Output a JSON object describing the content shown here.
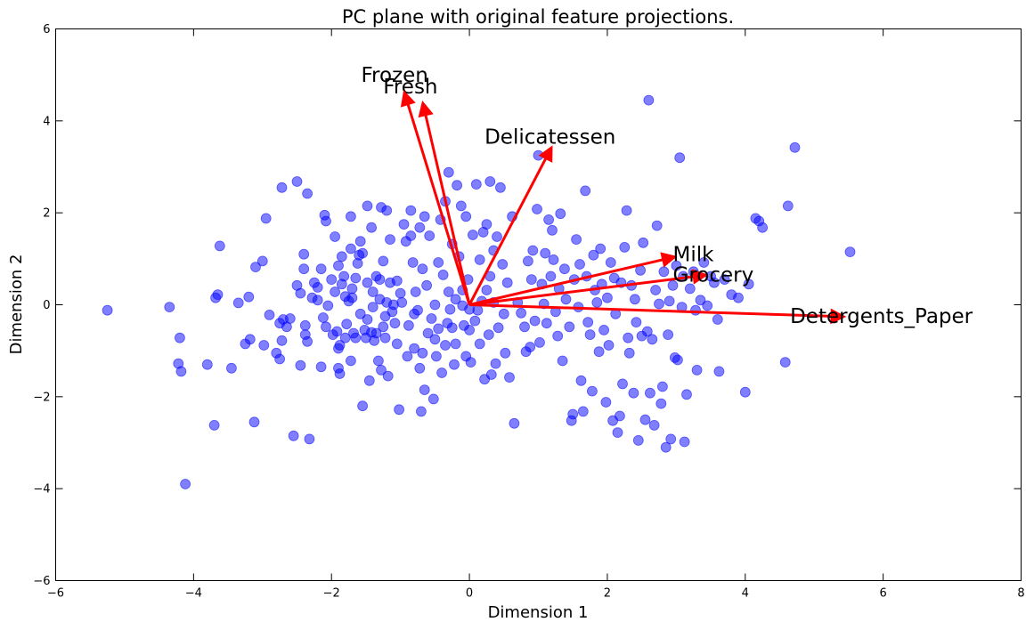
{
  "chart_data": {
    "type": "scatter",
    "title": "PC plane with original feature projections.",
    "xlabel": "Dimension 1",
    "ylabel": "Dimension 2",
    "xlim": [
      -6,
      8
    ],
    "ylim": [
      -6,
      6
    ],
    "xticks": [
      -6,
      -4,
      -2,
      0,
      2,
      4,
      6,
      8
    ],
    "yticks": [
      -6,
      -4,
      -2,
      0,
      2,
      4,
      6
    ],
    "xtick_labels": [
      "−6",
      "−4",
      "−2",
      "0",
      "2",
      "4",
      "6",
      "8"
    ],
    "ytick_labels": [
      "−6",
      "−4",
      "−2",
      "0",
      "2",
      "4",
      "6"
    ],
    "grid": false,
    "point_color": "#0000ff",
    "vector_color": "#ff0000",
    "vectors": [
      {
        "name": "Fresh",
        "x": -0.68,
        "y": 4.42,
        "label": "Fresh",
        "label_x": -1.25,
        "label_y": 4.6
      },
      {
        "name": "Milk",
        "x": 3.0,
        "y": 1.05,
        "label": "Milk",
        "label_x": 2.95,
        "label_y": 0.95
      },
      {
        "name": "Grocery",
        "x": 3.45,
        "y": 0.65,
        "label": "Grocery",
        "label_x": 2.95,
        "label_y": 0.5
      },
      {
        "name": "Frozen",
        "x": -0.95,
        "y": 4.65,
        "label": "Frozen",
        "label_x": -1.57,
        "label_y": 4.85
      },
      {
        "name": "Detergents_Paper",
        "x": 5.45,
        "y": -0.26,
        "label": "Detergents_Paper",
        "label_x": 4.65,
        "label_y": -0.4
      },
      {
        "name": "Delicatessen",
        "x": 1.2,
        "y": 3.45,
        "label": "Delicatessen",
        "label_x": 0.22,
        "label_y": 3.5
      }
    ],
    "points": [
      [
        -5.25,
        -0.12
      ],
      [
        -4.35,
        -0.05
      ],
      [
        -4.2,
        -0.72
      ],
      [
        -4.22,
        -1.28
      ],
      [
        -4.18,
        -1.45
      ],
      [
        -4.12,
        -3.9
      ],
      [
        -3.8,
        -1.3
      ],
      [
        -3.7,
        -2.62
      ],
      [
        -3.68,
        0.15
      ],
      [
        -3.65,
        0.22
      ],
      [
        -3.62,
        1.28
      ],
      [
        -3.45,
        -1.38
      ],
      [
        -3.35,
        0.04
      ],
      [
        -3.25,
        -0.85
      ],
      [
        -3.2,
        0.17
      ],
      [
        -3.18,
        -0.75
      ],
      [
        -3.12,
        -2.55
      ],
      [
        -3.1,
        0.82
      ],
      [
        -3.0,
        0.95
      ],
      [
        -2.98,
        -0.88
      ],
      [
        -2.95,
        1.88
      ],
      [
        -2.9,
        -0.22
      ],
      [
        -2.8,
        -1.05
      ],
      [
        -2.75,
        -1.18
      ],
      [
        -2.75,
        -0.4
      ],
      [
        -2.72,
        -0.78
      ],
      [
        -2.72,
        2.55
      ],
      [
        -2.7,
        -0.32
      ],
      [
        -2.65,
        -0.48
      ],
      [
        -2.6,
        -0.3
      ],
      [
        -2.55,
        -2.85
      ],
      [
        -2.5,
        0.42
      ],
      [
        -2.5,
        2.68
      ],
      [
        -2.45,
        0.25
      ],
      [
        -2.45,
        -1.32
      ],
      [
        -2.4,
        1.1
      ],
      [
        -2.4,
        0.78
      ],
      [
        -2.38,
        -0.65
      ],
      [
        -2.38,
        -0.45
      ],
      [
        -2.35,
        -0.8
      ],
      [
        -2.35,
        2.42
      ],
      [
        -2.32,
        -2.92
      ],
      [
        -2.28,
        0.15
      ],
      [
        -2.25,
        0.48
      ],
      [
        -2.2,
        0.1
      ],
      [
        -2.2,
        0.38
      ],
      [
        -2.15,
        0.78
      ],
      [
        -2.15,
        -1.35
      ],
      [
        -2.12,
        -0.28
      ],
      [
        -2.1,
        1.95
      ],
      [
        -2.08,
        1.82
      ],
      [
        -2.08,
        -0.48
      ],
      [
        -2.05,
        -0.02
      ],
      [
        -2.0,
        0.55
      ],
      [
        -1.98,
        -0.65
      ],
      [
        -1.95,
        1.48
      ],
      [
        -1.95,
        0.28
      ],
      [
        -1.92,
        -0.58
      ],
      [
        -1.9,
        -0.95
      ],
      [
        -1.9,
        0.85
      ],
      [
        -1.9,
        -1.38
      ],
      [
        -1.88,
        -1.5
      ],
      [
        -1.88,
        -0.88
      ],
      [
        -1.85,
        1.05
      ],
      [
        -1.85,
        0.45
      ],
      [
        -1.82,
        0.62
      ],
      [
        -1.8,
        0.18
      ],
      [
        -1.8,
        -0.72
      ],
      [
        -1.78,
        -0.42
      ],
      [
        -1.75,
        0.08
      ],
      [
        -1.72,
        1.22
      ],
      [
        -1.72,
        1.92
      ],
      [
        -1.72,
        -1.22
      ],
      [
        -1.7,
        0.35
      ],
      [
        -1.7,
        0.15
      ],
      [
        -1.68,
        -0.62
      ],
      [
        -1.65,
        0.58
      ],
      [
        -1.65,
        -0.72
      ],
      [
        -1.62,
        0.9
      ],
      [
        -1.6,
        1.08
      ],
      [
        -1.58,
        1.38
      ],
      [
        -1.58,
        -0.2
      ],
      [
        -1.55,
        -2.2
      ],
      [
        -1.55,
        1.12
      ],
      [
        -1.52,
        -0.55
      ],
      [
        -1.5,
        -0.72
      ],
      [
        -1.48,
        2.15
      ],
      [
        -1.48,
        0.48
      ],
      [
        -1.48,
        -0.32
      ],
      [
        -1.45,
        -1.65
      ],
      [
        -1.42,
        -0.6
      ],
      [
        -1.42,
        1.68
      ],
      [
        -1.4,
        0.28
      ],
      [
        -1.4,
        -0.05
      ],
      [
        -1.38,
        -0.78
      ],
      [
        -1.35,
        0.62
      ],
      [
        -1.35,
        -0.62
      ],
      [
        -1.32,
        -1.22
      ],
      [
        -1.3,
        0.12
      ],
      [
        -1.3,
        0.55
      ],
      [
        -1.28,
        2.12
      ],
      [
        -1.28,
        -1.42
      ],
      [
        -1.25,
        -0.48
      ],
      [
        -1.25,
        0.95
      ],
      [
        -1.22,
        -0.72
      ],
      [
        -1.22,
        -0.25
      ],
      [
        -1.2,
        2.05
      ],
      [
        -1.2,
        0.05
      ],
      [
        -1.18,
        -1.55
      ],
      [
        -1.15,
        1.42
      ],
      [
        -1.15,
        0.48
      ],
      [
        -1.12,
        -0.15
      ],
      [
        -1.1,
        0.0
      ],
      [
        -1.08,
        -0.4
      ],
      [
        -1.05,
        0.52
      ],
      [
        -1.05,
        -0.85
      ],
      [
        -1.02,
        -2.28
      ],
      [
        -1.0,
        0.25
      ],
      [
        -0.98,
        0.05
      ],
      [
        -0.95,
        1.75
      ],
      [
        -0.92,
        1.38
      ],
      [
        -0.9,
        -1.12
      ],
      [
        -0.88,
        -0.45
      ],
      [
        -0.85,
        1.5
      ],
      [
        -0.85,
        2.05
      ],
      [
        -0.82,
        0.92
      ],
      [
        -0.8,
        -0.2
      ],
      [
        -0.8,
        -0.95
      ],
      [
        -0.78,
        0.28
      ],
      [
        -0.75,
        -0.12
      ],
      [
        -0.72,
        1.68
      ],
      [
        -0.72,
        -1.38
      ],
      [
        -0.7,
        -2.32
      ],
      [
        -0.68,
        0.78
      ],
      [
        -0.68,
        -1.05
      ],
      [
        -0.65,
        1.92
      ],
      [
        -0.65,
        -1.85
      ],
      [
        -0.62,
        0.42
      ],
      [
        -0.6,
        -0.62
      ],
      [
        -0.58,
        1.5
      ],
      [
        -0.55,
        -0.3
      ],
      [
        -0.52,
        -2.05
      ],
      [
        -0.5,
        0.0
      ],
      [
        -0.5,
        -0.75
      ],
      [
        -0.48,
        -1.12
      ],
      [
        -0.45,
        0.92
      ],
      [
        -0.45,
        -0.52
      ],
      [
        -0.42,
        1.85
      ],
      [
        -0.4,
        -1.48
      ],
      [
        -0.38,
        0.65
      ],
      [
        -0.35,
        -0.88
      ],
      [
        -0.35,
        2.25
      ],
      [
        -0.32,
        -0.4
      ],
      [
        -0.3,
        2.88
      ],
      [
        -0.3,
        0.28
      ],
      [
        -0.28,
        -0.1
      ],
      [
        -0.25,
        -0.5
      ],
      [
        -0.25,
        1.32
      ],
      [
        -0.22,
        -1.3
      ],
      [
        -0.2,
        0.12
      ],
      [
        -0.2,
        -0.85
      ],
      [
        -0.18,
        2.6
      ],
      [
        -0.15,
        1.05
      ],
      [
        -0.12,
        2.15
      ],
      [
        -0.1,
        -0.02
      ],
      [
        -0.1,
        0.32
      ],
      [
        -0.08,
        -0.45
      ],
      [
        -0.05,
        -1.12
      ],
      [
        -0.05,
        1.92
      ],
      [
        -0.02,
        0.55
      ],
      [
        0.0,
        -0.1
      ],
      [
        0.0,
        -0.55
      ],
      [
        0.02,
        -1.25
      ],
      [
        0.05,
        1.52
      ],
      [
        0.08,
        -0.35
      ],
      [
        0.1,
        2.62
      ],
      [
        0.12,
        -0.12
      ],
      [
        0.15,
        0.98
      ],
      [
        0.15,
        -0.85
      ],
      [
        0.18,
        0.08
      ],
      [
        0.2,
        1.58
      ],
      [
        0.22,
        -1.62
      ],
      [
        0.25,
        1.75
      ],
      [
        0.25,
        0.32
      ],
      [
        0.28,
        -0.65
      ],
      [
        0.3,
        2.68
      ],
      [
        0.3,
        0.62
      ],
      [
        0.32,
        -1.52
      ],
      [
        0.35,
        1.18
      ],
      [
        0.35,
        0.05
      ],
      [
        0.38,
        -1.28
      ],
      [
        0.4,
        1.48
      ],
      [
        0.42,
        -0.5
      ],
      [
        0.45,
        2.55
      ],
      [
        0.48,
        0.88
      ],
      [
        0.5,
        -0.2
      ],
      [
        0.52,
        -1.05
      ],
      [
        0.55,
        0.48
      ],
      [
        0.58,
        -1.58
      ],
      [
        0.62,
        1.92
      ],
      [
        0.65,
        -2.58
      ],
      [
        0.7,
        0.05
      ],
      [
        0.75,
        -0.18
      ],
      [
        0.8,
        -0.48
      ],
      [
        0.82,
        -1.02
      ],
      [
        0.85,
        0.95
      ],
      [
        0.88,
        -0.92
      ],
      [
        0.9,
        0.55
      ],
      [
        0.92,
        1.18
      ],
      [
        0.95,
        -0.35
      ],
      [
        0.98,
        2.08
      ],
      [
        1.0,
        3.25
      ],
      [
        1.02,
        -0.82
      ],
      [
        1.05,
        0.45
      ],
      [
        1.08,
        0.02
      ],
      [
        1.1,
        1.12
      ],
      [
        1.12,
        -0.4
      ],
      [
        1.15,
        1.85
      ],
      [
        1.18,
        0.62
      ],
      [
        1.2,
        1.62
      ],
      [
        1.22,
        0.98
      ],
      [
        1.25,
        -0.15
      ],
      [
        1.28,
        -0.68
      ],
      [
        1.3,
        0.35
      ],
      [
        1.32,
        1.98
      ],
      [
        1.35,
        -1.22
      ],
      [
        1.38,
        0.78
      ],
      [
        1.4,
        0.12
      ],
      [
        1.45,
        -0.48
      ],
      [
        1.48,
        -2.52
      ],
      [
        1.5,
        -2.38
      ],
      [
        1.52,
        0.55
      ],
      [
        1.55,
        1.42
      ],
      [
        1.58,
        -0.05
      ],
      [
        1.6,
        0.88
      ],
      [
        1.62,
        -1.65
      ],
      [
        1.65,
        -2.32
      ],
      [
        1.68,
        2.48
      ],
      [
        1.7,
        0.62
      ],
      [
        1.72,
        -0.38
      ],
      [
        1.75,
        -0.65
      ],
      [
        1.78,
        -1.88
      ],
      [
        1.8,
        1.08
      ],
      [
        1.82,
        0.32
      ],
      [
        1.85,
        0.05
      ],
      [
        1.88,
        -1.02
      ],
      [
        1.9,
        1.22
      ],
      [
        1.92,
        0.45
      ],
      [
        1.95,
        -0.55
      ],
      [
        1.98,
        -2.12
      ],
      [
        2.0,
        0.15
      ],
      [
        2.02,
        -0.88
      ],
      [
        2.05,
        0.92
      ],
      [
        2.08,
        -2.52
      ],
      [
        2.1,
        0.58
      ],
      [
        2.12,
        -0.2
      ],
      [
        2.15,
        -2.78
      ],
      [
        2.18,
        -2.42
      ],
      [
        2.2,
        0.48
      ],
      [
        2.22,
        -1.72
      ],
      [
        2.25,
        1.25
      ],
      [
        2.28,
        2.05
      ],
      [
        2.3,
        -0.72
      ],
      [
        2.32,
        -1.05
      ],
      [
        2.35,
        0.42
      ],
      [
        2.38,
        -1.92
      ],
      [
        2.4,
        0.12
      ],
      [
        2.42,
        -0.38
      ],
      [
        2.45,
        -2.95
      ],
      [
        2.48,
        0.75
      ],
      [
        2.5,
        -0.68
      ],
      [
        2.52,
        1.35
      ],
      [
        2.55,
        -2.5
      ],
      [
        2.58,
        -0.58
      ],
      [
        2.6,
        4.45
      ],
      [
        2.62,
        -1.92
      ],
      [
        2.65,
        -0.75
      ],
      [
        2.68,
        -2.62
      ],
      [
        2.7,
        0.32
      ],
      [
        2.72,
        1.72
      ],
      [
        2.75,
        0.02
      ],
      [
        2.78,
        -2.15
      ],
      [
        2.8,
        -1.78
      ],
      [
        2.82,
        0.72
      ],
      [
        2.85,
        -3.1
      ],
      [
        2.88,
        -0.65
      ],
      [
        2.9,
        0.08
      ],
      [
        2.92,
        -2.92
      ],
      [
        2.95,
        0.42
      ],
      [
        2.98,
        -1.15
      ],
      [
        3.0,
        0.85
      ],
      [
        3.02,
        -1.2
      ],
      [
        3.05,
        3.2
      ],
      [
        3.08,
        -0.05
      ],
      [
        3.1,
        0.62
      ],
      [
        3.12,
        -2.98
      ],
      [
        3.15,
        -1.95
      ],
      [
        3.2,
        0.35
      ],
      [
        3.25,
        0.72
      ],
      [
        3.28,
        -0.12
      ],
      [
        3.3,
        -1.42
      ],
      [
        3.35,
        0.1
      ],
      [
        3.4,
        0.92
      ],
      [
        3.45,
        -0.02
      ],
      [
        3.5,
        0.62
      ],
      [
        3.55,
        0.48
      ],
      [
        3.6,
        -0.32
      ],
      [
        3.62,
        -1.45
      ],
      [
        3.7,
        0.55
      ],
      [
        3.8,
        0.22
      ],
      [
        3.9,
        0.15
      ],
      [
        4.0,
        -1.9
      ],
      [
        4.05,
        0.45
      ],
      [
        4.15,
        1.88
      ],
      [
        4.2,
        1.82
      ],
      [
        4.25,
        1.68
      ],
      [
        4.58,
        -1.25
      ],
      [
        4.62,
        2.15
      ],
      [
        4.72,
        3.42
      ],
      [
        5.52,
        1.15
      ]
    ]
  }
}
